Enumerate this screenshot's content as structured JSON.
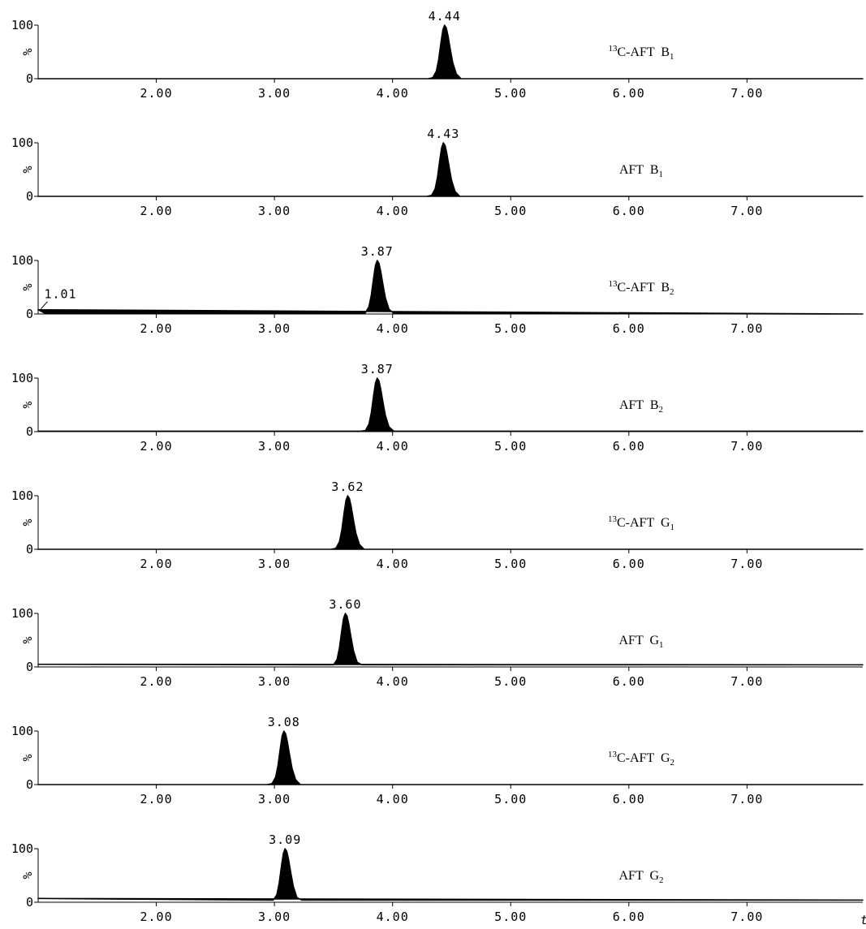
{
  "chart_data": [
    {
      "type": "area",
      "color": "#000000",
      "label_sup": "13",
      "label": "C-AFT  B",
      "label_sub": "1",
      "ylabel": "%",
      "x": [
        1.0,
        4.3,
        4.34,
        4.37,
        4.39,
        4.41,
        4.425,
        4.44,
        4.455,
        4.47,
        4.49,
        4.51,
        4.54,
        4.58,
        7.98
      ],
      "values": [
        0,
        0,
        2,
        14,
        36,
        69,
        91,
        100,
        95,
        80,
        54,
        30,
        9,
        0,
        0
      ],
      "annotations": [
        {
          "text": "4.44",
          "x": 4.44,
          "y": 100
        }
      ],
      "xlim": [
        1.0,
        7.98
      ],
      "ylim": [
        0,
        100
      ],
      "yticks": [
        0,
        100
      ],
      "xticks": [
        {
          "value": 2,
          "label": "2.00"
        },
        {
          "value": 3,
          "label": "3.00"
        },
        {
          "value": 4,
          "label": "4.00"
        },
        {
          "value": 5,
          "label": "5.00"
        },
        {
          "value": 6,
          "label": "6.00"
        },
        {
          "value": 7,
          "label": "7.00"
        }
      ]
    },
    {
      "type": "area",
      "color": "#000000",
      "label": "AFT  B",
      "label_sub": "1",
      "ylabel": "%",
      "x": [
        1.0,
        4.29,
        4.33,
        4.36,
        4.38,
        4.4,
        4.415,
        4.43,
        4.445,
        4.46,
        4.48,
        4.5,
        4.53,
        4.57,
        7.98
      ],
      "values": [
        0,
        0,
        2,
        14,
        36,
        69,
        91,
        100,
        95,
        80,
        54,
        30,
        9,
        0,
        0
      ],
      "annotations": [
        {
          "text": "4.43",
          "x": 4.43,
          "y": 100
        }
      ],
      "xlim": [
        1.0,
        7.98
      ],
      "ylim": [
        0,
        100
      ],
      "yticks": [
        0,
        100
      ],
      "xticks": [
        {
          "value": 2,
          "label": "2.00"
        },
        {
          "value": 3,
          "label": "3.00"
        },
        {
          "value": 4,
          "label": "4.00"
        },
        {
          "value": 5,
          "label": "5.00"
        },
        {
          "value": 6,
          "label": "6.00"
        },
        {
          "value": 7,
          "label": "7.00"
        }
      ]
    },
    {
      "type": "area",
      "color": "#000000",
      "label_sup": "13",
      "label": "C-AFT  B",
      "label_sub": "2",
      "ylabel": "%",
      "x": [
        1.0,
        1.06,
        3.73,
        3.77,
        3.8,
        3.82,
        3.84,
        3.855,
        3.87,
        3.885,
        3.9,
        3.92,
        3.94,
        3.97,
        4.01,
        7.98
      ],
      "values": [
        8,
        1,
        1,
        2,
        14,
        36,
        69,
        91,
        100,
        95,
        80,
        54,
        30,
        9,
        1,
        0
      ],
      "annotations": [
        {
          "text": "3.87",
          "x": 3.87,
          "y": 100
        },
        {
          "text": "1.01",
          "x": 1.01,
          "y": 8,
          "arrow": true
        }
      ],
      "xlim": [
        1.0,
        7.98
      ],
      "ylim": [
        0,
        100
      ],
      "yticks": [
        0,
        100
      ],
      "xticks": [
        {
          "value": 2,
          "label": "2.00"
        },
        {
          "value": 3,
          "label": "3.00"
        },
        {
          "value": 4,
          "label": "4.00"
        },
        {
          "value": 5,
          "label": "5.00"
        },
        {
          "value": 6,
          "label": "6.00"
        },
        {
          "value": 7,
          "label": "7.00"
        }
      ]
    },
    {
      "type": "area",
      "color": "#000000",
      "label": "AFT  B",
      "label_sub": "2",
      "ylabel": "%",
      "x": [
        1.0,
        3.73,
        3.77,
        3.8,
        3.82,
        3.84,
        3.855,
        3.87,
        3.885,
        3.9,
        3.92,
        3.94,
        3.97,
        4.01,
        7.98
      ],
      "values": [
        1,
        1,
        2,
        14,
        36,
        69,
        91,
        100,
        95,
        80,
        54,
        30,
        9,
        1,
        1
      ],
      "annotations": [
        {
          "text": "3.87",
          "x": 3.87,
          "y": 100
        }
      ],
      "xlim": [
        1.0,
        7.98
      ],
      "ylim": [
        0,
        100
      ],
      "yticks": [
        0,
        100
      ],
      "xticks": [
        {
          "value": 2,
          "label": "2.00"
        },
        {
          "value": 3,
          "label": "3.00"
        },
        {
          "value": 4,
          "label": "4.00"
        },
        {
          "value": 5,
          "label": "5.00"
        },
        {
          "value": 6,
          "label": "6.00"
        },
        {
          "value": 7,
          "label": "7.00"
        }
      ]
    },
    {
      "type": "area",
      "color": "#000000",
      "label_sup": "13",
      "label": "C-AFT  G",
      "label_sub": "1",
      "ylabel": "%",
      "x": [
        1.0,
        3.48,
        3.52,
        3.55,
        3.57,
        3.59,
        3.605,
        3.62,
        3.635,
        3.65,
        3.67,
        3.69,
        3.72,
        3.76,
        7.98
      ],
      "values": [
        0,
        0,
        2,
        14,
        36,
        69,
        91,
        100,
        95,
        80,
        54,
        30,
        9,
        0,
        0
      ],
      "annotations": [
        {
          "text": "3.62",
          "x": 3.62,
          "y": 100
        }
      ],
      "xlim": [
        1.0,
        7.98
      ],
      "ylim": [
        0,
        100
      ],
      "yticks": [
        0,
        100
      ],
      "xticks": [
        {
          "value": 2,
          "label": "2.00"
        },
        {
          "value": 3,
          "label": "3.00"
        },
        {
          "value": 4,
          "label": "4.00"
        },
        {
          "value": 5,
          "label": "5.00"
        },
        {
          "value": 6,
          "label": "6.00"
        },
        {
          "value": 7,
          "label": "7.00"
        }
      ]
    },
    {
      "type": "area",
      "color": "#000000",
      "label": "AFT  G",
      "label_sub": "1",
      "ylabel": "%",
      "x": [
        1.0,
        3.46,
        3.5,
        3.53,
        3.55,
        3.57,
        3.585,
        3.6,
        3.615,
        3.63,
        3.65,
        3.67,
        3.7,
        3.74,
        7.98
      ],
      "values": [
        5,
        4,
        4,
        14,
        36,
        69,
        91,
        100,
        95,
        80,
        54,
        30,
        9,
        4,
        4
      ],
      "annotations": [
        {
          "text": "3.60",
          "x": 3.6,
          "y": 100
        }
      ],
      "xlim": [
        1.0,
        7.98
      ],
      "ylim": [
        0,
        100
      ],
      "yticks": [
        0,
        100
      ],
      "xticks": [
        {
          "value": 2,
          "label": "2.00"
        },
        {
          "value": 3,
          "label": "3.00"
        },
        {
          "value": 4,
          "label": "4.00"
        },
        {
          "value": 5,
          "label": "5.00"
        },
        {
          "value": 6,
          "label": "6.00"
        },
        {
          "value": 7,
          "label": "7.00"
        }
      ]
    },
    {
      "type": "area",
      "color": "#000000",
      "label_sup": "13",
      "label": "C-AFT  G",
      "label_sub": "2",
      "ylabel": "%",
      "x": [
        1.0,
        2.94,
        2.98,
        3.01,
        3.03,
        3.05,
        3.065,
        3.08,
        3.095,
        3.11,
        3.13,
        3.15,
        3.18,
        3.22,
        7.98
      ],
      "values": [
        0,
        0,
        2,
        14,
        36,
        69,
        91,
        100,
        95,
        80,
        54,
        30,
        9,
        0,
        0
      ],
      "annotations": [
        {
          "text": "3.08",
          "x": 3.08,
          "y": 100
        }
      ],
      "xlim": [
        1.0,
        7.98
      ],
      "ylim": [
        0,
        100
      ],
      "yticks": [
        0,
        100
      ],
      "xticks": [
        {
          "value": 2,
          "label": "2.00"
        },
        {
          "value": 3,
          "label": "3.00"
        },
        {
          "value": 4,
          "label": "4.00"
        },
        {
          "value": 5,
          "label": "5.00"
        },
        {
          "value": 6,
          "label": "6.00"
        },
        {
          "value": 7,
          "label": "7.00"
        }
      ]
    },
    {
      "type": "area",
      "color": "#000000",
      "label": "AFT  G",
      "label_sub": "2",
      "ylabel": "%",
      "xlabel": "t",
      "x": [
        1.0,
        2.95,
        2.99,
        3.02,
        3.04,
        3.06,
        3.075,
        3.09,
        3.105,
        3.12,
        3.14,
        3.16,
        3.19,
        3.23,
        7.98
      ],
      "values": [
        7,
        4,
        4,
        14,
        36,
        69,
        91,
        100,
        95,
        80,
        54,
        30,
        9,
        4,
        4
      ],
      "annotations": [
        {
          "text": "3.09",
          "x": 3.09,
          "y": 100
        }
      ],
      "xlim": [
        1.0,
        7.98
      ],
      "ylim": [
        0,
        100
      ],
      "yticks": [
        0,
        100
      ],
      "xticks": [
        {
          "value": 2,
          "label": "2.00"
        },
        {
          "value": 3,
          "label": "3.00"
        },
        {
          "value": 4,
          "label": "4.00"
        },
        {
          "value": 5,
          "label": "5.00"
        },
        {
          "value": 6,
          "label": "6.00"
        },
        {
          "value": 7,
          "label": "7.00"
        }
      ]
    }
  ]
}
